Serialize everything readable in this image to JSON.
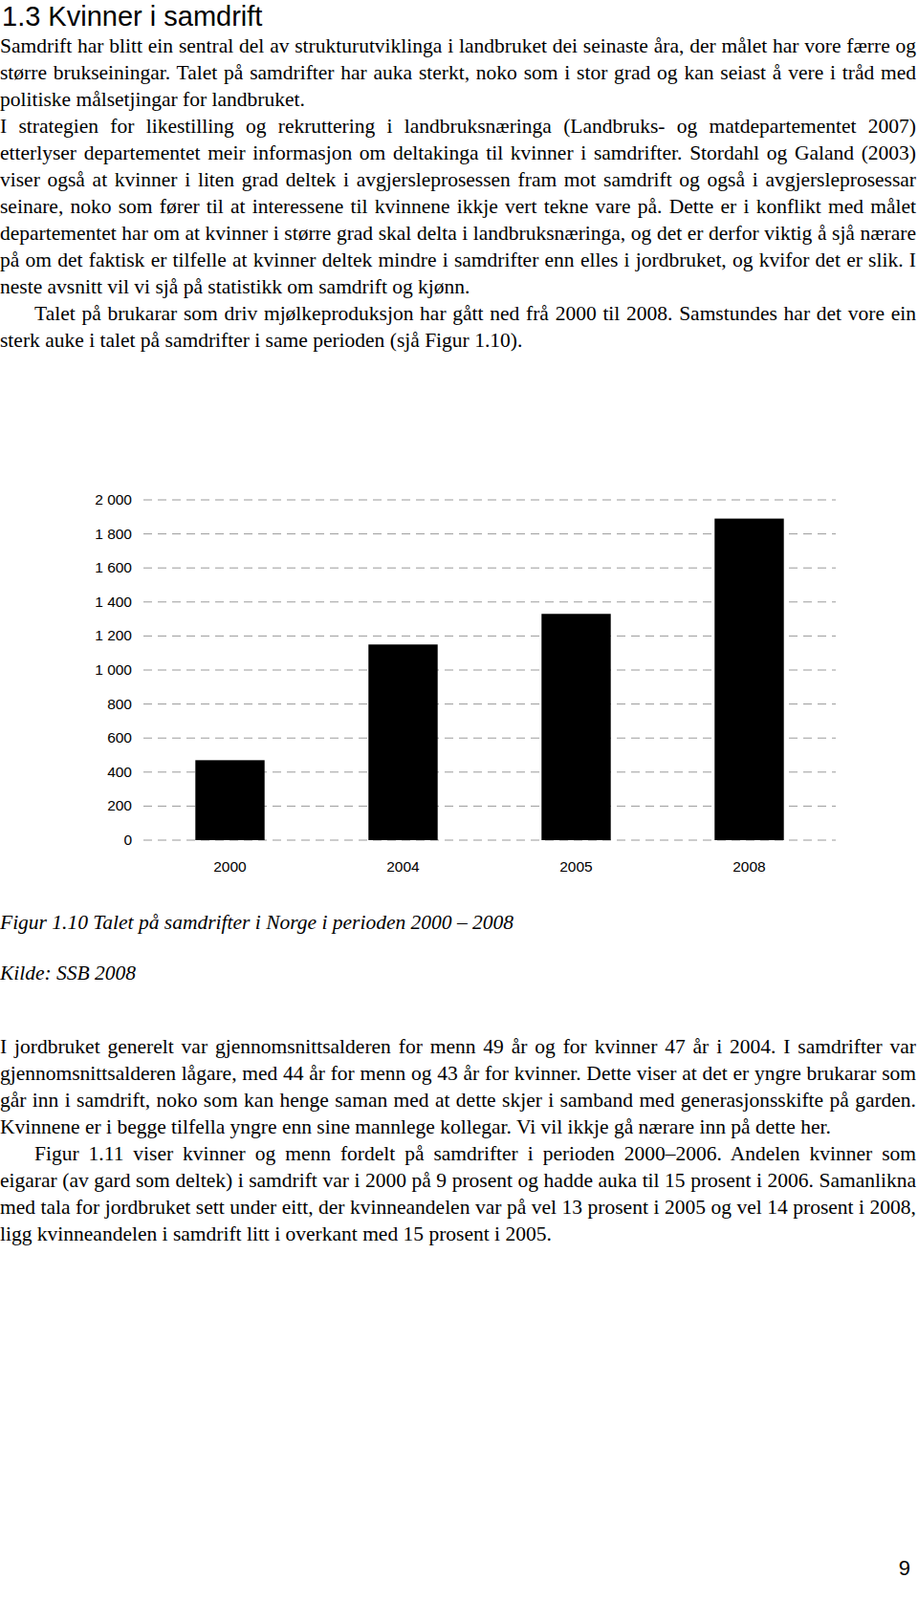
{
  "heading": "1.3 Kvinner i samdrift",
  "text_before": [
    "Samdrift har blitt ein sentral del av strukturutviklinga i landbruket dei seinaste åra, der målet har vore færre og større brukseiningar. Talet på samdrifter har auka sterkt, noko som i stor grad og kan seiast å vere i tråd med politiske målsetjingar for landbruket.",
    "I strategien for likestilling og rekruttering i landbruksnæringa (Landbruks- og matdepartementet 2007) etterlyser departementet meir informasjon om deltakinga til kvinner i samdrifter. Stordahl og Galand (2003) viser også at kvinner i liten grad deltek i avgjersleprosessen fram mot samdrift og også i avgjersleprosessar seinare, noko som fører til at interessene til kvinnene ikkje vert tekne vare på. Dette er i konflikt med målet departementet har om at kvinner i større grad skal delta i landbruksnæringa, og det er derfor viktig å sjå nærare på om det faktisk er tilfelle at kvinner deltek mindre i samdrifter enn elles i jordbruket, og kvifor det er slik. I neste avsnitt vil vi sjå på statistikk om samdrift og kjønn.",
    "Talet på brukarar som driv mjølkeproduksjon har gått ned frå 2000 til 2008. Samstundes har det vore ein sterk auke i talet på samdrifter i same perioden (sjå Figur 1.10)."
  ],
  "chart_data": {
    "type": "bar",
    "title": "Figur 1.10 Talet på samdrifter i Norge i perioden 2000 – 2008",
    "categories": [
      "2000",
      "2004",
      "2005",
      "2008"
    ],
    "values": [
      470,
      1150,
      1330,
      1890
    ],
    "color": "#000000",
    "ylim": [
      0,
      2000
    ],
    "yticks": [
      0,
      200,
      400,
      600,
      800,
      {
        "value": 1000,
        "label": "1 000"
      },
      {
        "value": 1200,
        "label": "1 200"
      },
      {
        "value": 1400,
        "label": "1 400"
      },
      {
        "value": 1600,
        "label": "1 600"
      },
      {
        "value": 1800,
        "label": "1 800"
      },
      {
        "value": 2000,
        "label": "2 000"
      }
    ],
    "grid": true
  },
  "source": "Kilde: SSB 2008",
  "text_after": [
    "I jordbruket generelt var gjennomsnittsalderen for menn 49 år og for kvinner 47 år i 2004. I samdrifter var gjennomsnittsalderen lågare, med 44 år for menn og 43 år for kvinner. Dette viser at det er yngre brukarar som går inn i samdrift, noko som kan henge saman med at dette skjer i samband med generasjonsskifte på garden. Kvinnene er i begge tilfella yngre enn sine mannlege kollegar. Vi vil ikkje gå nærare inn på dette her.",
    "Figur 1.11 viser kvinner og menn fordelt på samdrifter i perioden 2000–2006. Andelen kvinner som eigarar (av gard som deltek) i samdrift var i 2000 på 9 prosent og hadde auka til 15 prosent i 2006. Samanlikna med tala for jordbruket sett under eitt, der kvinneandelen var på vel 13 prosent i 2005 og vel 14 prosent i 2008, ligg kvinneandelen i samdrift litt i overkant med 15 prosent i 2005."
  ],
  "page_number": "9"
}
